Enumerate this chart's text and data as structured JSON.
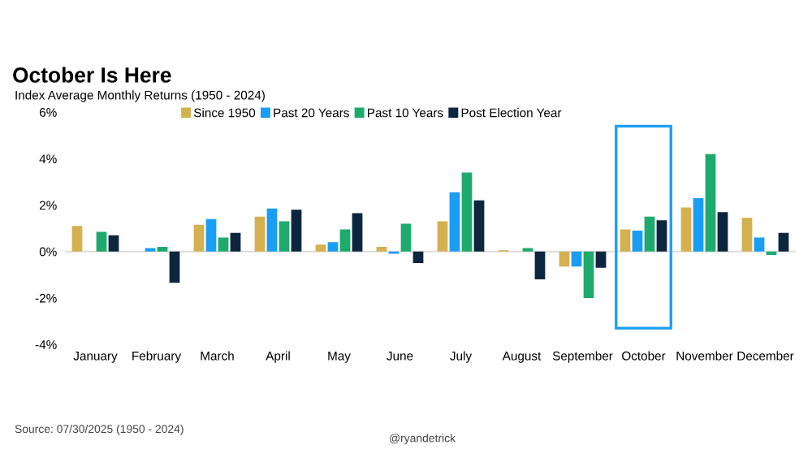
{
  "chart_data": {
    "type": "bar",
    "title": "October Is Here",
    "subtitle": "Index Average Monthly Returns (1950 - 2024)",
    "categories": [
      "January",
      "February",
      "March",
      "April",
      "May",
      "June",
      "July",
      "August",
      "September",
      "October",
      "November",
      "December"
    ],
    "series": [
      {
        "name": "Since 1950",
        "color": "#d4b04e",
        "values": [
          1.1,
          0.0,
          1.15,
          1.5,
          0.3,
          0.2,
          1.3,
          0.05,
          -0.65,
          0.95,
          1.9,
          1.45
        ]
      },
      {
        "name": "Past 20 Years",
        "color": "#1a9ef5",
        "values": [
          0.0,
          0.15,
          1.4,
          1.85,
          0.4,
          -0.1,
          2.55,
          0.0,
          -0.65,
          0.9,
          2.3,
          0.6
        ]
      },
      {
        "name": "Past 10 Years",
        "color": "#1eaa6c",
        "values": [
          0.85,
          0.2,
          0.6,
          1.3,
          0.95,
          1.2,
          3.4,
          0.15,
          -2.0,
          1.5,
          4.2,
          -0.15
        ]
      },
      {
        "name": "Post Election Year",
        "color": "#0d2640",
        "values": [
          0.7,
          -1.35,
          0.8,
          1.8,
          1.65,
          -0.5,
          2.2,
          -1.2,
          -0.7,
          1.35,
          1.7,
          0.8
        ]
      }
    ],
    "ylim": [
      -4,
      6
    ],
    "yticks": [
      {
        "value": -4,
        "label": "-4%"
      },
      {
        "value": -2,
        "label": "-2%"
      },
      {
        "value": 0,
        "label": "0%"
      },
      {
        "value": 2,
        "label": "2%"
      },
      {
        "value": 4,
        "label": "4%"
      },
      {
        "value": 6,
        "label": "6%"
      }
    ],
    "grid": false,
    "legend": "top",
    "ref_lines": [
      {
        "axis": "y",
        "value": 0,
        "color": "#dddddd"
      }
    ],
    "annotations": [
      "Source: 07/30/2025 (1950 - 2024)",
      "@ryandetrick"
    ]
  }
}
